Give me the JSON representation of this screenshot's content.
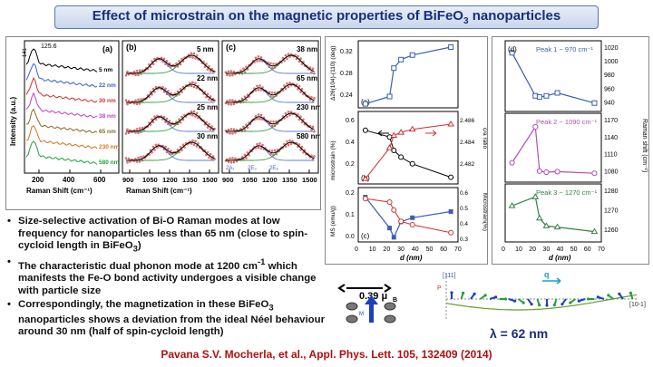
{
  "title": {
    "prefix": "Effect of microstrain on the magnetic properties of BiFeO",
    "sub": "3",
    "suffix": " nanoparticles"
  },
  "raman": {
    "panel_a": {
      "label": "(a)",
      "peak_top": "125.6",
      "peak_side": "141",
      "sizes": [
        "5 nm",
        "22 nm",
        "30 nm",
        "38 nm",
        "65 nm",
        "230 nm",
        "580 nm"
      ],
      "size_colors": [
        "#000000",
        "#3a5fcf",
        "#d03030",
        "#c040c0",
        "#8a6a20",
        "#e07020",
        "#20a040"
      ],
      "ylabel": "Intensity (a.u.)",
      "xlabel": "Raman Shift (cm⁻¹)",
      "xticks": [
        "200",
        "400",
        "600"
      ]
    },
    "panel_b": {
      "label": "(b)",
      "sizes": [
        "5 nm",
        "22 nm",
        "25 nm",
        "30 nm"
      ],
      "xticks": [
        "900",
        "1050",
        "1200",
        "1350",
        "1500"
      ],
      "xlabel": "Raman Shift (cm⁻¹)"
    },
    "panel_c": {
      "label": "(c)",
      "sizes": [
        "38 nm",
        "65 nm",
        "230 nm",
        "580 nm"
      ],
      "xticks": [
        "900",
        "1050",
        "1200",
        "1350",
        "1500"
      ],
      "modes": [
        "2A₁",
        "2E₃",
        "2E₈"
      ]
    }
  },
  "middle": {
    "a": {
      "label": "(a)",
      "ylabel": "Δ2θ(104)-(110) (deg)",
      "yticks": [
        "0.32",
        "0.28",
        "0.24"
      ]
    },
    "b": {
      "label": "(b)",
      "ylabel_left": "microstrain (%)",
      "ylabel_right": "c/a ratio",
      "yticks_left": [
        "0.6",
        "0.4",
        "0.2"
      ],
      "yticks_right": [
        "2.486",
        "2.484",
        "2.482"
      ]
    },
    "c": {
      "label": "(c)",
      "ylabel_left": "MS (emu/g)",
      "ylabel_right": "Microstrain(%)",
      "yticks_left": [
        "0.2",
        "0.1",
        "0.0"
      ],
      "yticks_right": [
        "0.6",
        "0.5",
        "0.4",
        "0.3"
      ],
      "xticks": [
        "0",
        "10",
        "20",
        "30",
        "40",
        "50",
        "60",
        "70"
      ],
      "xlabel": "d (nm)"
    },
    "d_vals": [
      5,
      22,
      25,
      30,
      38,
      65
    ],
    "shift_vals": [
      0.232,
      0.245,
      0.295,
      0.31,
      0.318,
      0.332
    ],
    "strain_vals": [
      0.55,
      0.5,
      0.4,
      0.35,
      0.3,
      0.2
    ],
    "ca_vals": [
      2.481,
      2.484,
      2.4852,
      2.4855,
      2.4858,
      2.4863
    ],
    "ms_vals": [
      0.2,
      0.05,
      0.005,
      0.08,
      0.1,
      0.13
    ],
    "ms_strain_vals": [
      0.6,
      0.57,
      0.5,
      0.4,
      0.37,
      0.3
    ]
  },
  "right": {
    "label": "(d)",
    "ylabel": "Raman shift (cm⁻¹)",
    "peak1": {
      "label": "Peak 1 ~ 970 cm⁻¹",
      "yticks": [
        "1020",
        "1000",
        "980",
        "960",
        "940"
      ],
      "d": [
        5,
        22,
        25,
        30,
        38,
        65
      ],
      "v": [
        1022,
        950,
        948,
        950,
        955,
        938
      ]
    },
    "peak2": {
      "label": "Peak 2 ~ 1090 cm⁻¹",
      "yticks": [
        "1170",
        "1140",
        "1110",
        "1080"
      ],
      "d": [
        5,
        22,
        25,
        30,
        38,
        65
      ],
      "v": [
        1100,
        1168,
        1084,
        1082,
        1083,
        1080
      ]
    },
    "peak3": {
      "label": "Peak 3 ~ 1270 cm⁻¹",
      "yticks": [
        "1280",
        "1270",
        "1260"
      ],
      "d": [
        5,
        22,
        25,
        30,
        38,
        65
      ],
      "v": [
        1281,
        1289,
        1270,
        1263,
        1262,
        1258
      ]
    },
    "xticks": [
      "0",
      "10",
      "20",
      "30",
      "40",
      "50",
      "60",
      "70"
    ],
    "xlabel": "d (nm)",
    "colors": {
      "p1": "#3a5fb0",
      "p2": "#b050b0",
      "p3": "#308040"
    }
  },
  "spin": {
    "moment": "0.39 μ",
    "moment_sub": "B",
    "m_label": "M",
    "axis_111": "[111]",
    "axis_101": "[10-1]",
    "q": "q",
    "p": "P"
  },
  "bullets": [
    {
      "pre": "Size-selective activation of Bi-O Raman modes at low frequency for nanoparticles less than 65 nm (close to spin-cycloid length in BiFeO",
      "sub": "3",
      "post": ")"
    },
    {
      "pre": "The characteristic dual phonon mode at 1200 cm",
      "sup": "-1",
      "post": " which manifests the Fe-O bond activity undergoes a visible change with particle size"
    },
    {
      "pre": "Correspondingly, the magnetization in these BiFeO",
      "sub": "3",
      "post": " nanoparticles shows a deviation from the ideal Néel behaviour around 30 nm (half of spin-cycloid length)"
    }
  ],
  "lambda": "λ = 62 nm",
  "citation": "Pavana S.V. Mocherla, et al., Appl. Phys. Lett. 105, 132409 (2014)"
}
